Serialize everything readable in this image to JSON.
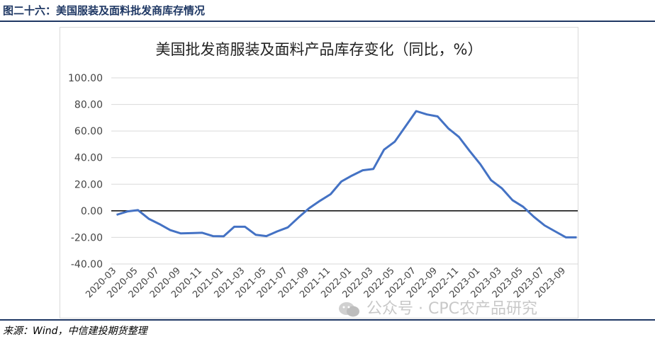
{
  "header": {
    "title": "图二十六：美国服装及面料批发商库存情况"
  },
  "footer": {
    "source": "来源：Wind，中信建投期货整理"
  },
  "watermark": {
    "text": "公众号 · CPC农产品研究",
    "icon": "wechat-icon"
  },
  "colors": {
    "line": "#4472c4",
    "zero_line": "#000000",
    "grid": "#d9d9d9",
    "header": "#1f3864"
  },
  "chart_data": {
    "type": "line",
    "title": "美国批发商服装及面料产品库存变化（同比，%）",
    "ylim": [
      -40,
      100
    ],
    "y_ticks": [
      -40,
      -20,
      0,
      20,
      40,
      60,
      80,
      100
    ],
    "y_tick_labels": [
      "-40.00",
      "-20.00",
      "0.00",
      "20.00",
      "40.00",
      "60.00",
      "80.00",
      "100.00"
    ],
    "x_tick_labels": [
      "2020-03",
      "2020-05",
      "2020-07",
      "2020-09",
      "2020-11",
      "2021-01",
      "2021-03",
      "2021-05",
      "2021-07",
      "2021-09",
      "2021-11",
      "2022-01",
      "2022-03",
      "2022-05",
      "2022-07",
      "2022-09",
      "2022-11",
      "2023-01",
      "2023-03",
      "2023-05",
      "2023-07",
      "2023-09"
    ],
    "grid": true,
    "series": [
      {
        "x": [
          "2020-03",
          "2020-04",
          "2020-05",
          "2020-06",
          "2020-07",
          "2020-08",
          "2020-09",
          "2020-10",
          "2020-11",
          "2020-12",
          "2021-01",
          "2021-02",
          "2021-03",
          "2021-04",
          "2021-05",
          "2021-06",
          "2021-07",
          "2021-08",
          "2021-09",
          "2021-10",
          "2021-11",
          "2021-12",
          "2022-01",
          "2022-02",
          "2022-03",
          "2022-04",
          "2022-05",
          "2022-06",
          "2022-07",
          "2022-08",
          "2022-09",
          "2022-10",
          "2022-11",
          "2022-12",
          "2023-01",
          "2023-02",
          "2023-03",
          "2023-04",
          "2023-05",
          "2023-06",
          "2023-07",
          "2023-08",
          "2023-09",
          "2023-10"
        ],
        "values": [
          -3,
          -0.5,
          0.5,
          -6,
          -10,
          -14.5,
          -17,
          -16.8,
          -16.5,
          -19,
          -19.2,
          -12,
          -12,
          -18,
          -19,
          -15.5,
          -12.5,
          -5,
          2,
          7.5,
          12.5,
          22,
          26.5,
          30.5,
          31.5,
          46,
          52,
          63.5,
          75,
          72.5,
          71,
          62,
          55.5,
          45,
          35,
          23,
          17,
          8,
          3,
          -4.5,
          -11,
          -15.5,
          -20,
          -20
        ]
      }
    ]
  }
}
